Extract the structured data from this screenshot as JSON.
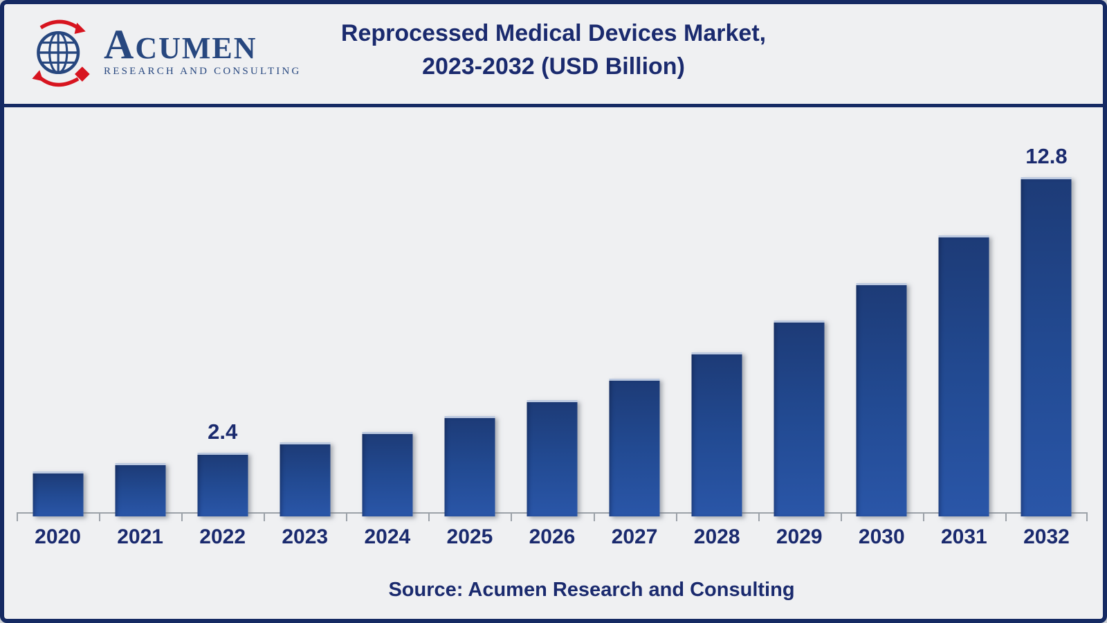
{
  "header": {
    "title_line1": "Reprocessed Medical Devices Market,",
    "title_line2": "2023-2032 (USD Billion)",
    "logo": {
      "brand": "ACUMEN",
      "tagline": "RESEARCH AND CONSULTING",
      "navy_color": "#27477f",
      "red_color": "#d7141f"
    }
  },
  "footer": {
    "source_text": "Source: Acumen Research and Consulting"
  },
  "colors": {
    "background": "#eff0f2",
    "border_navy": "#152a63",
    "text_navy": "#1a2a6e",
    "bar_gradient_top": "#1d3b77",
    "bar_gradient_bottom": "#2a56a8",
    "bar_top_highlight": "#bcc9e0",
    "axis_grey": "#9ba1a8"
  },
  "chart_data": {
    "type": "bar",
    "title": "Reprocessed Medical Devices Market, 2023-2032 (USD Billion)",
    "xlabel": "",
    "ylabel": "USD Billion",
    "ylim": [
      0,
      13.5
    ],
    "grid": false,
    "legend": "none",
    "categories": [
      "2020",
      "2021",
      "2022",
      "2023",
      "2024",
      "2025",
      "2026",
      "2027",
      "2028",
      "2029",
      "2030",
      "2031",
      "2032"
    ],
    "values": [
      1.7,
      2.0,
      2.4,
      2.8,
      3.2,
      3.8,
      4.4,
      5.2,
      6.2,
      7.4,
      8.8,
      10.6,
      12.8
    ],
    "value_labels": [
      "",
      "",
      "2.4",
      "",
      "",
      "",
      "",
      "",
      "",
      "",
      "",
      "",
      "12.8"
    ]
  }
}
